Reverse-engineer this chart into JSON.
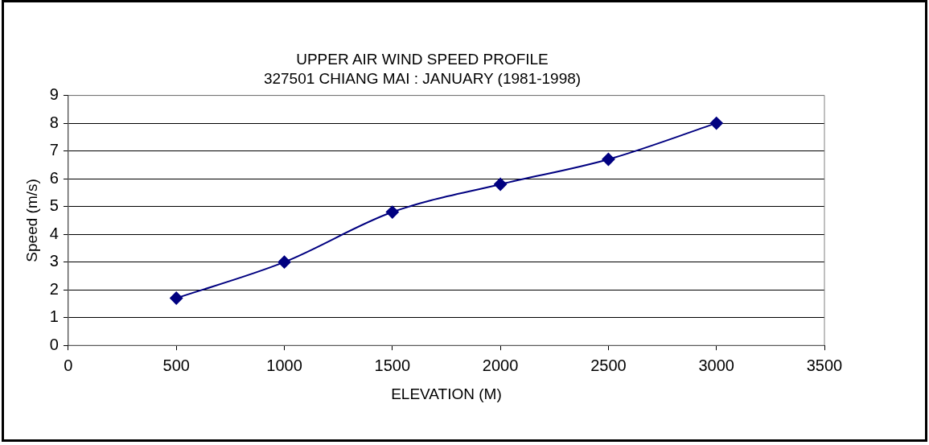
{
  "chart_data": {
    "type": "line",
    "title": "UPPER AIR WIND SPEED PROFILE",
    "subtitle": "327501 CHIANG MAI : JANUARY (1981-1998)",
    "xlabel": "ELEVATION (M)",
    "ylabel": "Speed (m/s)",
    "x": [
      500,
      1000,
      1500,
      2000,
      2500,
      3000
    ],
    "series": [
      {
        "color": "#000080",
        "values": [
          1.7,
          3.0,
          4.8,
          5.8,
          6.7,
          8.0
        ]
      }
    ],
    "xlim": [
      0,
      3500
    ],
    "xticks": [
      0,
      500,
      1000,
      1500,
      2000,
      2500,
      3000,
      3500
    ],
    "ylim": [
      0,
      9
    ],
    "yticks": [
      0,
      1,
      2,
      3,
      4,
      5,
      6,
      7,
      8,
      9
    ],
    "grid": "y",
    "legend": false,
    "marker": "diamond",
    "line_style": "solid"
  }
}
